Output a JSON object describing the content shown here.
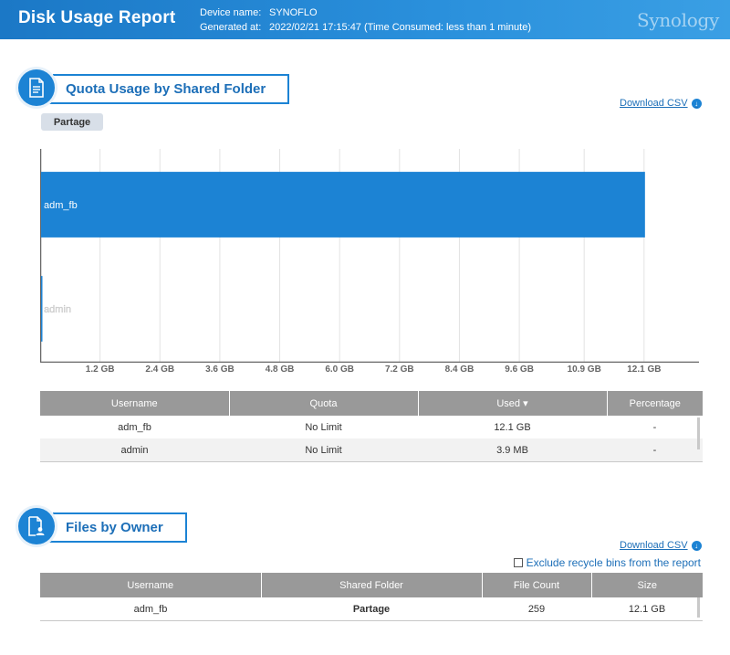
{
  "header": {
    "title": "Disk Usage Report",
    "device_label": "Device name:",
    "device_value": "SYNOFLO",
    "generated_label": "Generated at:",
    "generated_value": "2022/02/21 17:15:47 (Time Consumed: less than 1 minute)",
    "logo": "Synology"
  },
  "quota_section": {
    "title": "Quota Usage by Shared Folder",
    "download_label": "Download CSV",
    "folder_tag": "Partage"
  },
  "chart_data": {
    "type": "bar",
    "orientation": "horizontal",
    "categories": [
      "adm_fb",
      "admin"
    ],
    "values": [
      12.1,
      0.0039
    ],
    "unit": "GB",
    "xlim": [
      0,
      13.2
    ],
    "xticks": [
      "1.2 GB",
      "2.4 GB",
      "3.6 GB",
      "4.8 GB",
      "6.0 GB",
      "7.2 GB",
      "8.4 GB",
      "9.6 GB",
      "10.9 GB",
      "12.1 GB"
    ],
    "xtick_values": [
      1.2,
      2.4,
      3.6,
      4.8,
      6.0,
      7.2,
      8.4,
      9.6,
      10.9,
      12.1
    ],
    "bar_color": "#1c83d4",
    "grid": true
  },
  "quota_table": {
    "columns": [
      "Username",
      "Quota",
      "Used ▾",
      "Percentage"
    ],
    "rows": [
      [
        "adm_fb",
        "No Limit",
        "12.1 GB",
        "-"
      ],
      [
        "admin",
        "No Limit",
        "3.9 MB",
        "-"
      ]
    ]
  },
  "owner_section": {
    "title": "Files by Owner",
    "download_label": "Download CSV",
    "exclude_label": "Exclude recycle bins from the report"
  },
  "owner_table": {
    "columns": [
      "Username",
      "Shared Folder",
      "File Count",
      "Size"
    ],
    "rows": [
      [
        "adm_fb",
        "Partage",
        "259",
        "12.1 GB"
      ]
    ]
  },
  "colors": {
    "accent": "#1c83d4",
    "header_bg": "#2a90dc",
    "table_header": "#999999"
  }
}
